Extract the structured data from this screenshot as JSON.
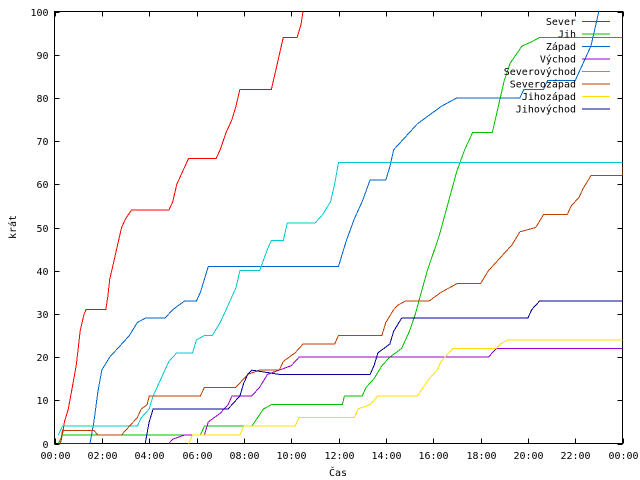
{
  "chart_data": {
    "type": "line",
    "title": "",
    "xlabel": "Čas",
    "ylabel": "krát",
    "xlim": [
      "00:00",
      "24:00"
    ],
    "ylim": [
      0,
      100
    ],
    "grid": false,
    "legend_position": "top-right",
    "x_tick_labels": [
      "00:00",
      "02:00",
      "04:00",
      "06:00",
      "08:00",
      "10:00",
      "12:00",
      "14:00",
      "16:00",
      "18:00",
      "20:00",
      "22:00",
      "00:00"
    ],
    "y_tick_labels": [
      "0",
      "10",
      "20",
      "30",
      "40",
      "50",
      "60",
      "70",
      "80",
      "90",
      "100"
    ],
    "series": [
      {
        "name": "Sever",
        "color": "#ff0000",
        "points": [
          [
            "00:15",
            0
          ],
          [
            "00:20",
            2
          ],
          [
            "00:25",
            5
          ],
          [
            "00:35",
            8
          ],
          [
            "00:45",
            13
          ],
          [
            "00:55",
            18
          ],
          [
            "01:00",
            22
          ],
          [
            "01:05",
            26
          ],
          [
            "01:15",
            30
          ],
          [
            "01:20",
            31
          ],
          [
            "02:10",
            31
          ],
          [
            "02:15",
            34
          ],
          [
            "02:20",
            38
          ],
          [
            "02:30",
            42
          ],
          [
            "02:40",
            46
          ],
          [
            "02:50",
            50
          ],
          [
            "03:00",
            52
          ],
          [
            "03:15",
            54
          ],
          [
            "04:50",
            54
          ],
          [
            "05:00",
            56
          ],
          [
            "05:10",
            60
          ],
          [
            "05:20",
            62
          ],
          [
            "05:30",
            64
          ],
          [
            "05:40",
            66
          ],
          [
            "06:50",
            66
          ],
          [
            "07:00",
            68
          ],
          [
            "07:15",
            72
          ],
          [
            "07:30",
            75
          ],
          [
            "07:40",
            78
          ],
          [
            "07:50",
            82
          ],
          [
            "09:10",
            82
          ],
          [
            "09:20",
            86
          ],
          [
            "09:30",
            90
          ],
          [
            "09:40",
            94
          ],
          [
            "10:15",
            94
          ],
          [
            "10:25",
            97
          ],
          [
            "10:30",
            100
          ]
        ]
      },
      {
        "name": "Jih",
        "color": "#00c000",
        "points": [
          [
            "00:10",
            0
          ],
          [
            "00:20",
            2
          ],
          [
            "06:10",
            2
          ],
          [
            "06:20",
            4
          ],
          [
            "08:20",
            4
          ],
          [
            "08:35",
            6
          ],
          [
            "08:50",
            8
          ],
          [
            "09:10",
            9
          ],
          [
            "12:10",
            9
          ],
          [
            "12:15",
            11
          ],
          [
            "13:00",
            11
          ],
          [
            "13:10",
            13
          ],
          [
            "13:30",
            15
          ],
          [
            "13:50",
            18
          ],
          [
            "14:10",
            20
          ],
          [
            "14:40",
            22
          ],
          [
            "15:00",
            26
          ],
          [
            "15:15",
            30
          ],
          [
            "15:30",
            35
          ],
          [
            "15:45",
            40
          ],
          [
            "16:00",
            44
          ],
          [
            "16:15",
            48
          ],
          [
            "16:30",
            53
          ],
          [
            "16:45",
            58
          ],
          [
            "17:00",
            63
          ],
          [
            "17:20",
            68
          ],
          [
            "17:40",
            72
          ],
          [
            "18:30",
            72
          ],
          [
            "18:45",
            78
          ],
          [
            "19:00",
            84
          ],
          [
            "19:15",
            88
          ],
          [
            "19:30",
            90
          ],
          [
            "19:45",
            92
          ],
          [
            "20:10",
            93
          ],
          [
            "20:30",
            94
          ],
          [
            "24:00",
            94
          ]
        ]
      },
      {
        "name": "Západ",
        "color": "#0066cc",
        "points": [
          [
            "00:10",
            0
          ],
          [
            "01:30",
            0
          ],
          [
            "01:40",
            5
          ],
          [
            "01:50",
            12
          ],
          [
            "02:00",
            17
          ],
          [
            "02:20",
            20
          ],
          [
            "02:40",
            22
          ],
          [
            "03:10",
            25
          ],
          [
            "03:30",
            28
          ],
          [
            "03:50",
            29
          ],
          [
            "04:40",
            29
          ],
          [
            "05:00",
            31
          ],
          [
            "05:30",
            33
          ],
          [
            "06:00",
            33
          ],
          [
            "06:10",
            35
          ],
          [
            "06:20",
            38
          ],
          [
            "06:30",
            41
          ],
          [
            "12:00",
            41
          ],
          [
            "12:10",
            44
          ],
          [
            "12:20",
            47
          ],
          [
            "12:40",
            52
          ],
          [
            "13:00",
            56
          ],
          [
            "13:20",
            61
          ],
          [
            "14:00",
            61
          ],
          [
            "14:10",
            64
          ],
          [
            "14:20",
            68
          ],
          [
            "14:40",
            70
          ],
          [
            "15:00",
            72
          ],
          [
            "15:20",
            74
          ],
          [
            "15:50",
            76
          ],
          [
            "16:20",
            78
          ],
          [
            "17:00",
            80
          ],
          [
            "19:40",
            80
          ],
          [
            "19:50",
            82
          ],
          [
            "20:40",
            82
          ],
          [
            "20:50",
            84
          ],
          [
            "22:00",
            84
          ],
          [
            "22:20",
            88
          ],
          [
            "22:40",
            92
          ],
          [
            "22:50",
            96
          ],
          [
            "23:00",
            100
          ]
        ]
      },
      {
        "name": "Východ",
        "color": "#9900cc",
        "points": [
          [
            "04:50",
            0
          ],
          [
            "05:00",
            1
          ],
          [
            "05:30",
            2
          ],
          [
            "06:20",
            2
          ],
          [
            "06:30",
            5
          ],
          [
            "07:00",
            7
          ],
          [
            "07:20",
            9
          ],
          [
            "07:30",
            11
          ],
          [
            "08:20",
            11
          ],
          [
            "08:40",
            13
          ],
          [
            "09:00",
            16
          ],
          [
            "10:00",
            18
          ],
          [
            "10:20",
            20
          ],
          [
            "18:20",
            20
          ],
          [
            "18:40",
            22
          ],
          [
            "24:00",
            22
          ]
        ]
      },
      {
        "name": "Severovýchod",
        "color": "#00cccc",
        "points": [
          [
            "00:10",
            2
          ],
          [
            "00:20",
            4
          ],
          [
            "03:30",
            4
          ],
          [
            "03:40",
            6
          ],
          [
            "04:00",
            8
          ],
          [
            "04:10",
            11
          ],
          [
            "04:30",
            15
          ],
          [
            "04:50",
            19
          ],
          [
            "05:10",
            21
          ],
          [
            "05:50",
            21
          ],
          [
            "06:00",
            24
          ],
          [
            "06:20",
            25
          ],
          [
            "06:40",
            25
          ],
          [
            "07:00",
            28
          ],
          [
            "07:20",
            32
          ],
          [
            "07:40",
            36
          ],
          [
            "07:50",
            40
          ],
          [
            "08:40",
            40
          ],
          [
            "09:00",
            45
          ],
          [
            "09:10",
            47
          ],
          [
            "09:40",
            47
          ],
          [
            "09:50",
            51
          ],
          [
            "11:00",
            51
          ],
          [
            "11:20",
            53
          ],
          [
            "11:40",
            56
          ],
          [
            "11:50",
            60
          ],
          [
            "12:00",
            65
          ],
          [
            "24:00",
            65
          ]
        ]
      },
      {
        "name": "Severozápad",
        "color": "#c04000",
        "points": [
          [
            "00:15",
            0
          ],
          [
            "00:20",
            3
          ],
          [
            "01:40",
            3
          ],
          [
            "01:50",
            2
          ],
          [
            "02:50",
            2
          ],
          [
            "03:10",
            4
          ],
          [
            "03:30",
            6
          ],
          [
            "03:40",
            8
          ],
          [
            "03:55",
            9
          ],
          [
            "04:00",
            11
          ],
          [
            "06:10",
            11
          ],
          [
            "06:20",
            13
          ],
          [
            "07:40",
            13
          ],
          [
            "08:10",
            16
          ],
          [
            "08:40",
            17
          ],
          [
            "09:30",
            17
          ],
          [
            "09:40",
            19
          ],
          [
            "10:10",
            21
          ],
          [
            "10:30",
            23
          ],
          [
            "11:50",
            23
          ],
          [
            "12:00",
            25
          ],
          [
            "13:50",
            25
          ],
          [
            "14:00",
            28
          ],
          [
            "14:20",
            31
          ],
          [
            "14:30",
            32
          ],
          [
            "14:50",
            33
          ],
          [
            "15:50",
            33
          ],
          [
            "16:20",
            35
          ],
          [
            "17:00",
            37
          ],
          [
            "18:00",
            37
          ],
          [
            "18:20",
            40
          ],
          [
            "18:40",
            42
          ],
          [
            "19:00",
            44
          ],
          [
            "19:20",
            46
          ],
          [
            "19:40",
            49
          ],
          [
            "20:20",
            50
          ],
          [
            "20:40",
            53
          ],
          [
            "21:40",
            53
          ],
          [
            "21:50",
            55
          ],
          [
            "22:10",
            57
          ],
          [
            "22:20",
            59
          ],
          [
            "22:40",
            62
          ],
          [
            "24:00",
            62
          ],
          [
            "24:00",
            64
          ]
        ]
      },
      {
        "name": "Jihozápad",
        "color": "#ffe000",
        "points": [
          [
            "05:40",
            0
          ],
          [
            "05:50",
            2
          ],
          [
            "07:50",
            2
          ],
          [
            "08:00",
            4
          ],
          [
            "10:10",
            4
          ],
          [
            "10:20",
            6
          ],
          [
            "12:40",
            6
          ],
          [
            "12:50",
            8
          ],
          [
            "13:20",
            9
          ],
          [
            "13:40",
            11
          ],
          [
            "15:20",
            11
          ],
          [
            "15:50",
            15
          ],
          [
            "16:10",
            17
          ],
          [
            "16:20",
            19
          ],
          [
            "16:40",
            21
          ],
          [
            "16:50",
            22
          ],
          [
            "18:40",
            22
          ],
          [
            "18:50",
            23
          ],
          [
            "19:10",
            24
          ],
          [
            "24:00",
            24
          ]
        ]
      },
      {
        "name": "Jihovýchod",
        "color": "#000099",
        "points": [
          [
            "03:50",
            0
          ],
          [
            "04:00",
            5
          ],
          [
            "04:10",
            8
          ],
          [
            "07:20",
            8
          ],
          [
            "07:50",
            11
          ],
          [
            "08:00",
            14
          ],
          [
            "08:10",
            16
          ],
          [
            "08:20",
            17
          ],
          [
            "09:30",
            16
          ],
          [
            "13:20",
            16
          ],
          [
            "13:30",
            18
          ],
          [
            "13:40",
            21
          ],
          [
            "14:10",
            23
          ],
          [
            "14:20",
            26
          ],
          [
            "14:40",
            29
          ],
          [
            "20:00",
            29
          ],
          [
            "20:10",
            31
          ],
          [
            "20:30",
            33
          ],
          [
            "24:00",
            33
          ]
        ]
      }
    ]
  }
}
